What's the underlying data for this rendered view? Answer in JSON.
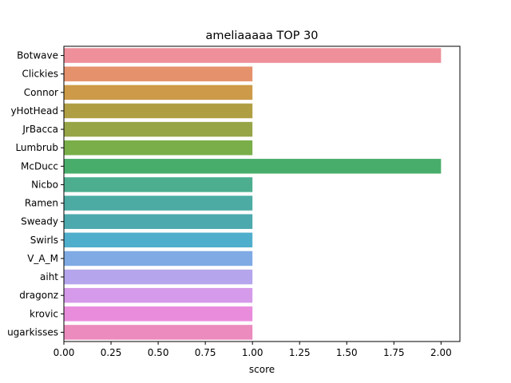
{
  "chart_data": {
    "type": "bar",
    "orientation": "horizontal",
    "title": "ameliaaaaa TOP 30",
    "xlabel": "score",
    "ylabel": "",
    "xlim": [
      0,
      2.1
    ],
    "xticks": [
      0.0,
      0.25,
      0.5,
      0.75,
      1.0,
      1.25,
      1.5,
      1.75,
      2.0
    ],
    "xtick_labels": [
      "0.00",
      "0.25",
      "0.50",
      "0.75",
      "1.00",
      "1.25",
      "1.50",
      "1.75",
      "2.00"
    ],
    "grid": false,
    "categories": [
      "Botwave",
      "Clickies",
      "Connor",
      "yHotHead",
      "JrBacca",
      "Lumbrub",
      "McDucc",
      "Nicbo",
      "Ramen",
      "Sweady",
      "Swirls",
      "V_A_M",
      "aiht",
      "dragonz",
      "krovic",
      "ugarkisses"
    ],
    "values": [
      2,
      1,
      1,
      1,
      1,
      1,
      2,
      1,
      1,
      1,
      1,
      1,
      1,
      1,
      1,
      1
    ],
    "colors": [
      "#ee8f9a",
      "#e5916b",
      "#cc9a48",
      "#b09e43",
      "#98a547",
      "#79ae48",
      "#48ad6b",
      "#4cad8f",
      "#4caba2",
      "#4ca9ad",
      "#4faecb",
      "#7faae4",
      "#b5a5ec",
      "#d59ae9",
      "#e98cdb",
      "#ec8bbd"
    ]
  }
}
